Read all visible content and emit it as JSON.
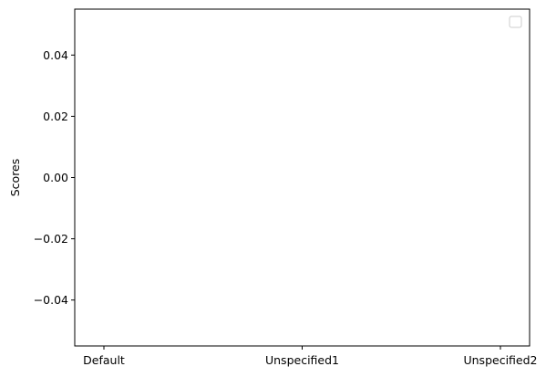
{
  "chart_data": {
    "type": "bar",
    "categories": [
      "Default",
      "Unspecified1",
      "Unspecified2"
    ],
    "series": [],
    "xlabel": "",
    "ylabel": "Scores",
    "ylim": [
      -0.055,
      0.055
    ],
    "yticks": [
      0.04,
      0.02,
      0.0,
      -0.02,
      -0.04
    ],
    "ytick_labels": [
      "0.04",
      "0.02",
      "0.00",
      "−0.02",
      "−0.04"
    ],
    "legend": {
      "location": "top-right",
      "entries": []
    },
    "grid": false
  }
}
